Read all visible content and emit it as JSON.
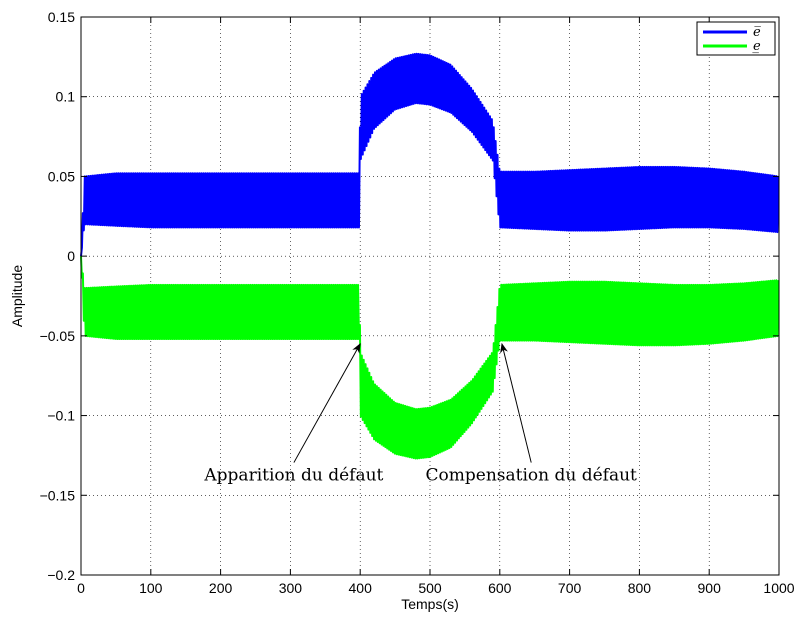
{
  "chart_data": {
    "type": "line",
    "title": "",
    "xlabel": "Temps(s)",
    "ylabel": "Amplitude",
    "xlim": [
      0,
      1000
    ],
    "ylim": [
      -0.2,
      0.15
    ],
    "xticks": [
      0,
      100,
      200,
      300,
      400,
      500,
      600,
      700,
      800,
      900,
      1000
    ],
    "yticks": [
      -0.2,
      -0.15,
      -0.1,
      -0.05,
      0,
      0.05,
      0.1,
      0.15
    ],
    "xtick_labels": [
      "0",
      "100",
      "200",
      "300",
      "400",
      "500",
      "600",
      "700",
      "800",
      "900",
      "1000"
    ],
    "ytick_labels": [
      "−0.2",
      "−0.15",
      "−0.1",
      "−0.05",
      "0",
      "0.05",
      "0.1",
      "0.15"
    ],
    "grid": true,
    "legend_position": "top-right",
    "series": [
      {
        "name": "e̅",
        "color": "#0000ff",
        "envelope_x": [
          0,
          5,
          50,
          100,
          200,
          300,
          399,
          400,
          420,
          450,
          480,
          500,
          530,
          560,
          590,
          600,
          650,
          700,
          750,
          800,
          850,
          900,
          950,
          1000
        ],
        "envelope_upper": [
          0.0,
          0.05,
          0.052,
          0.052,
          0.052,
          0.052,
          0.052,
          0.1,
          0.115,
          0.124,
          0.127,
          0.126,
          0.12,
          0.105,
          0.085,
          0.053,
          0.053,
          0.054,
          0.055,
          0.056,
          0.056,
          0.055,
          0.053,
          0.05
        ],
        "envelope_lower": [
          0.0,
          0.02,
          0.019,
          0.018,
          0.018,
          0.018,
          0.018,
          0.06,
          0.08,
          0.092,
          0.096,
          0.095,
          0.09,
          0.078,
          0.06,
          0.018,
          0.017,
          0.016,
          0.016,
          0.017,
          0.018,
          0.018,
          0.017,
          0.015
        ]
      },
      {
        "name": "e̲",
        "color": "#00ff00",
        "envelope_x": [
          0,
          5,
          50,
          100,
          200,
          300,
          399,
          400,
          420,
          450,
          480,
          500,
          530,
          560,
          590,
          600,
          650,
          700,
          750,
          800,
          850,
          900,
          950,
          1000
        ],
        "envelope_upper": [
          0.0,
          -0.02,
          -0.019,
          -0.018,
          -0.018,
          -0.018,
          -0.018,
          -0.06,
          -0.08,
          -0.092,
          -0.096,
          -0.095,
          -0.09,
          -0.078,
          -0.06,
          -0.018,
          -0.017,
          -0.016,
          -0.016,
          -0.017,
          -0.018,
          -0.018,
          -0.017,
          -0.015
        ],
        "envelope_lower": [
          0.0,
          -0.05,
          -0.052,
          -0.052,
          -0.052,
          -0.052,
          -0.052,
          -0.1,
          -0.115,
          -0.124,
          -0.127,
          -0.126,
          -0.12,
          -0.105,
          -0.085,
          -0.053,
          -0.053,
          -0.054,
          -0.055,
          -0.056,
          -0.056,
          -0.055,
          -0.053,
          -0.05
        ]
      }
    ],
    "annotations": [
      {
        "text": "Apparition du défaut",
        "point_x": 400,
        "point_y": -0.055,
        "text_anchor_x": 305,
        "text_anchor_y": -0.137
      },
      {
        "text": "Compensation du défaut",
        "point_x": 603,
        "point_y": -0.055,
        "text_anchor_x": 645,
        "text_anchor_y": -0.137
      }
    ]
  }
}
